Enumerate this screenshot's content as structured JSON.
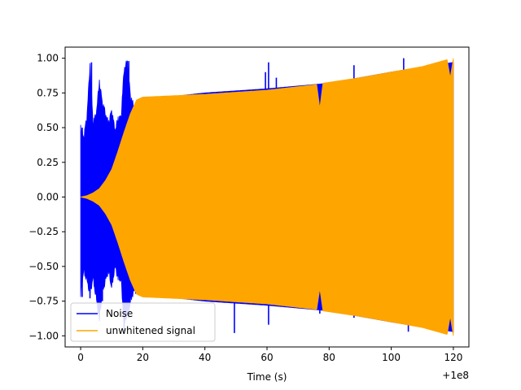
{
  "chart_data": {
    "type": "line",
    "title": "",
    "xlabel": "Time (s)",
    "ylabel": "",
    "x_offset_label": "+1e8",
    "xlim": [
      -5,
      125
    ],
    "ylim": [
      -1.08,
      1.08
    ],
    "x_ticks": [
      0,
      20,
      40,
      60,
      80,
      100,
      120
    ],
    "y_ticks": [
      1.0,
      0.75,
      0.5,
      0.25,
      0.0,
      -0.25,
      -0.5,
      -0.75,
      -1.0
    ],
    "x_tick_labels": [
      "0",
      "20",
      "40",
      "60",
      "80",
      "100",
      "120"
    ],
    "y_tick_labels": [
      "1.00",
      "0.75",
      "0.50",
      "0.25",
      "0.00",
      "−0.25",
      "−0.50",
      "−0.75",
      "−1.00"
    ],
    "grid": false,
    "legend_position": "lower-left",
    "series": [
      {
        "name": "Noise",
        "color": "#0000ff",
        "envelope": {
          "x": [
            0,
            1,
            2,
            3,
            4,
            5,
            6,
            7,
            8,
            9,
            10,
            11,
            12,
            13,
            14,
            15,
            16,
            17,
            18,
            20,
            40,
            60,
            80,
            100,
            120
          ],
          "upper": [
            0.52,
            0.45,
            0.6,
            0.97,
            0.55,
            0.62,
            0.85,
            0.7,
            0.62,
            0.55,
            0.65,
            0.5,
            0.58,
            0.6,
            0.95,
            1.0,
            0.75,
            0.68,
            0.68,
            0.7,
            0.75,
            0.78,
            0.82,
            0.9,
            0.97
          ],
          "lower": [
            -0.72,
            -0.55,
            -0.62,
            -0.72,
            -0.6,
            -0.75,
            -0.9,
            -0.7,
            -0.62,
            -0.55,
            -0.68,
            -0.52,
            -0.6,
            -0.62,
            -0.95,
            -0.85,
            -0.78,
            -0.7,
            -0.7,
            -0.7,
            -0.75,
            -0.78,
            -0.82,
            -0.9,
            -0.97
          ]
        },
        "spikes": [
          {
            "x": 0.5,
            "y": 0.5
          },
          {
            "x": 3.5,
            "y": 0.97
          },
          {
            "x": 15.5,
            "y": 0.98
          },
          {
            "x": 37,
            "y": 0.6
          },
          {
            "x": 50,
            "y": 0.57
          },
          {
            "x": 59.5,
            "y": 0.9
          },
          {
            "x": 60.5,
            "y": 0.97
          },
          {
            "x": 63,
            "y": 0.86
          },
          {
            "x": 88,
            "y": 0.95
          },
          {
            "x": 104,
            "y": 1.0
          },
          {
            "x": 0.5,
            "y": -0.72
          },
          {
            "x": 3,
            "y": -0.73
          },
          {
            "x": 7,
            "y": -0.75
          },
          {
            "x": 14,
            "y": -0.98
          },
          {
            "x": 15.5,
            "y": -0.87
          },
          {
            "x": 49.5,
            "y": -0.98
          },
          {
            "x": 60.5,
            "y": -0.92
          },
          {
            "x": 77,
            "y": -0.84
          },
          {
            "x": 88,
            "y": -0.87
          },
          {
            "x": 105.5,
            "y": -0.97
          }
        ]
      },
      {
        "name": "unwhitened signal",
        "color": "#ffa500",
        "envelope": {
          "x": [
            0,
            2,
            4,
            6,
            8,
            10,
            12,
            14,
            16,
            18,
            20,
            40,
            60,
            76,
            77,
            78,
            90,
            100,
            110,
            118,
            119,
            120
          ],
          "upper": [
            0.0,
            0.01,
            0.03,
            0.06,
            0.12,
            0.2,
            0.33,
            0.47,
            0.6,
            0.7,
            0.72,
            0.74,
            0.77,
            0.81,
            0.64,
            0.82,
            0.86,
            0.9,
            0.94,
            0.99,
            0.86,
            1.0
          ],
          "lower": [
            0.0,
            -0.01,
            -0.03,
            -0.06,
            -0.12,
            -0.2,
            -0.33,
            -0.47,
            -0.6,
            -0.7,
            -0.72,
            -0.74,
            -0.77,
            -0.81,
            -0.66,
            -0.82,
            -0.86,
            -0.9,
            -0.94,
            -0.99,
            -0.86,
            -1.0
          ]
        }
      }
    ]
  }
}
